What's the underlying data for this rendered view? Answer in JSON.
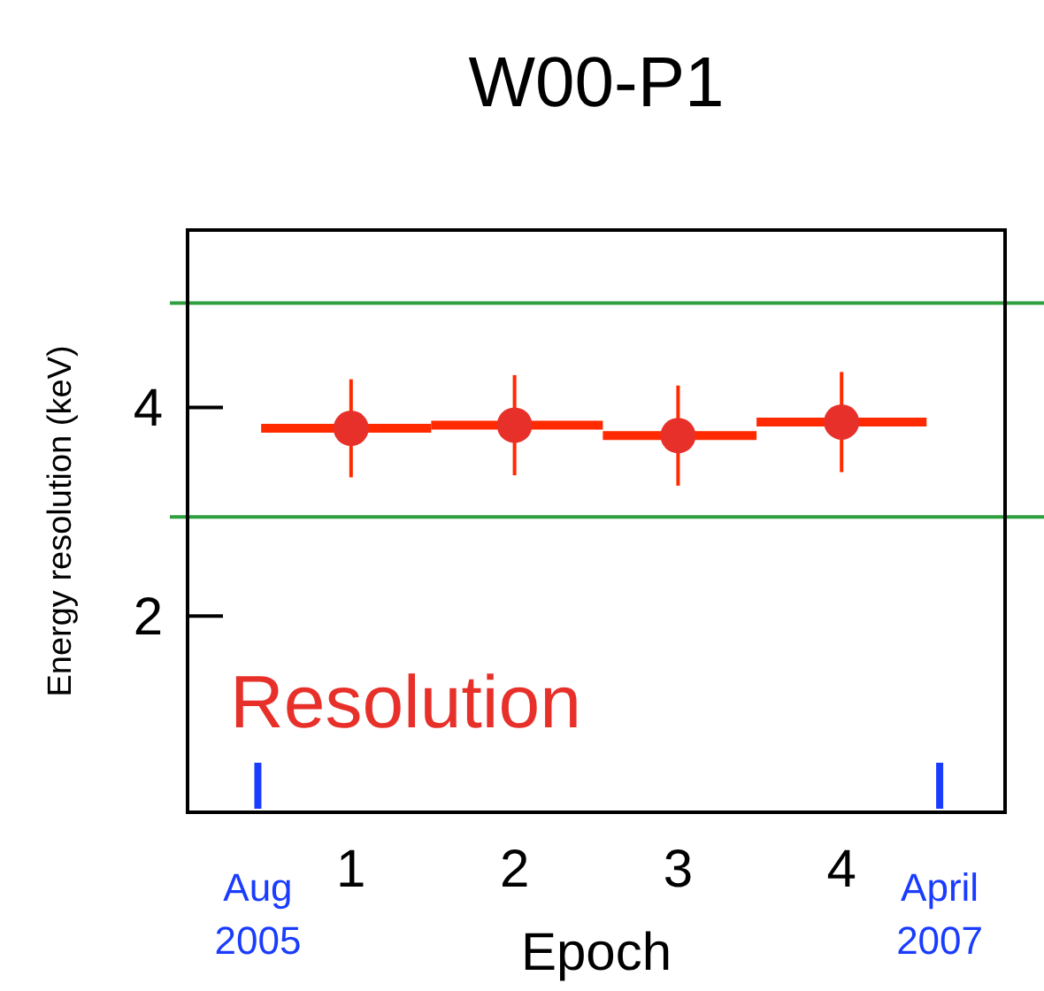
{
  "chart_data": {
    "type": "scatter",
    "title": "W00-P1",
    "xlabel": "Epoch",
    "ylabel": "Energy resolution (keV)",
    "x": [
      1,
      2,
      3,
      4
    ],
    "series": [
      {
        "color": "#e8302a",
        "values": [
          3.8,
          3.83,
          3.73,
          3.86
        ],
        "errors": [
          0.47,
          0.48,
          0.48,
          0.48
        ],
        "xerrors": [
          [
            0.45,
            1.49
          ],
          [
            1.49,
            2.54
          ],
          [
            2.54,
            3.48
          ],
          [
            3.48,
            4.52
          ]
        ]
      }
    ],
    "xlim": [
      0,
      5
    ],
    "ylim": [
      0.12,
      5.7
    ],
    "xticks": [
      1,
      2,
      3,
      4
    ],
    "yticks": [
      2,
      4
    ],
    "ref_lines": [
      {
        "axis": "y",
        "value": 5,
        "color": "#2e9e3e"
      },
      {
        "axis": "y",
        "value": 2.95,
        "color": "#2e9e3e"
      },
      {
        "axis": "x",
        "value": 0.43,
        "label": "Aug 2005",
        "color": "#1a3cff"
      },
      {
        "axis": "x",
        "value": 4.6,
        "label": "April 2007",
        "color": "#1a3cff"
      }
    ],
    "annotations": [
      "Resolution"
    ],
    "marker": "circle"
  }
}
